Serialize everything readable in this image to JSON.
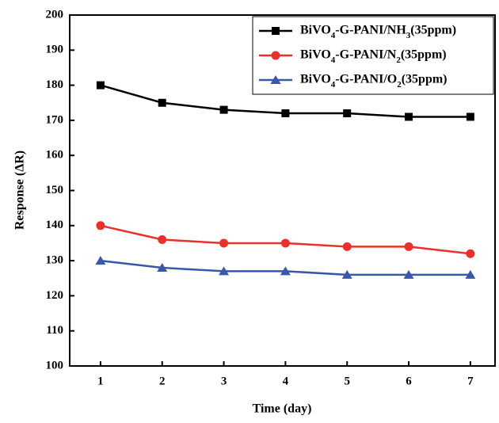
{
  "chart_data": {
    "type": "line",
    "xlabel": "Time (day)",
    "ylabel": "Response (ΔR)",
    "x": [
      1,
      2,
      3,
      4,
      5,
      6,
      7
    ],
    "xlim": [
      0.5,
      7.4
    ],
    "xticks": [
      1,
      2,
      3,
      4,
      5,
      6,
      7
    ],
    "ylim": [
      100,
      200
    ],
    "yticks": [
      100,
      110,
      120,
      130,
      140,
      150,
      160,
      170,
      180,
      190,
      200
    ],
    "legend": "upper right",
    "series": [
      {
        "name": "BiVO4-G-PANI/NH3(35ppm)",
        "color": "#000000",
        "marker": "square",
        "values": [
          180,
          175,
          173,
          172,
          172,
          171,
          171
        ]
      },
      {
        "name": "BiVO4-G-PANI/N2(35ppm)",
        "color": "#e8312a",
        "marker": "circle",
        "values": [
          140,
          136,
          135,
          135,
          134,
          134,
          132
        ]
      },
      {
        "name": "BiVO4-G-PANI/O2(35ppm)",
        "color": "#3a58a8",
        "marker": "triangle",
        "values": [
          130,
          128,
          127,
          127,
          126,
          126,
          126
        ]
      }
    ]
  }
}
